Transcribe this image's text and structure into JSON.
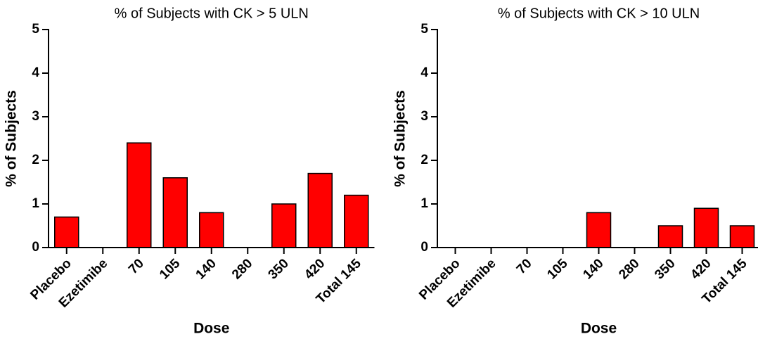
{
  "chart_data": [
    {
      "type": "bar",
      "title": "% of Subjects with CK > 5 ULN",
      "x_label": "Dose",
      "y_label": "% of Subjects",
      "categories": [
        "Placebo",
        "Ezetimibe",
        "70",
        "105",
        "140",
        "280",
        "350",
        "420",
        "Total 145"
      ],
      "values": [
        0.7,
        0,
        2.4,
        1.6,
        0.8,
        0,
        1.0,
        1.7,
        1.2
      ],
      "color": "#ff0000",
      "ylim": [
        0,
        5
      ],
      "yticks": [
        0,
        1,
        2,
        3,
        4,
        5
      ]
    },
    {
      "type": "bar",
      "title": "% of Subjects with CK > 10 ULN",
      "x_label": "Dose",
      "y_label": "% of Subjects",
      "categories": [
        "Placebo",
        "Ezetimibe",
        "70",
        "105",
        "140",
        "280",
        "350",
        "420",
        "Total 145"
      ],
      "values": [
        0,
        0,
        0,
        0,
        0.8,
        0,
        0.5,
        0.9,
        0.5
      ],
      "color": "#ff0000",
      "ylim": [
        0,
        5
      ],
      "yticks": [
        0,
        1,
        2,
        3,
        4,
        5
      ]
    }
  ]
}
